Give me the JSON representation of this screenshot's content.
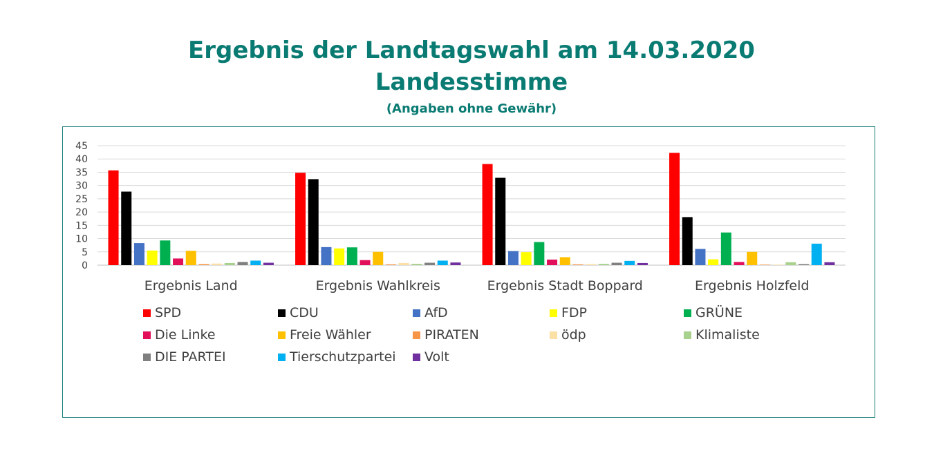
{
  "title": {
    "line1": "Ergebnis der Landtagswahl am 14.03.2020",
    "line2": "Landesstimme",
    "line3": "(Angaben ohne Gewähr)"
  },
  "chart_data": {
    "type": "bar",
    "ylim": [
      0,
      45
    ],
    "yticks": [
      "0",
      "5",
      "10",
      "15",
      "20",
      "25",
      "30",
      "35",
      "40",
      "45"
    ],
    "grid": true,
    "legend_position": "bottom",
    "categories": [
      "Ergebnis Land",
      "Ergebnis Wahlkreis",
      "Ergebnis Stadt Boppard",
      "Ergebnis Holzfeld"
    ],
    "series": [
      {
        "name": "SPD",
        "color": "#ff0000",
        "values": [
          35.7,
          34.8,
          38.1,
          42.3
        ]
      },
      {
        "name": "CDU",
        "color": "#000000",
        "values": [
          27.7,
          32.4,
          32.9,
          18.1
        ]
      },
      {
        "name": "AfD",
        "color": "#4472c4",
        "values": [
          8.3,
          6.8,
          5.3,
          6.1
        ]
      },
      {
        "name": "FDP",
        "color": "#ffff00",
        "values": [
          5.5,
          6.3,
          4.9,
          2.2
        ]
      },
      {
        "name": "GRÜNE",
        "color": "#00b050",
        "values": [
          9.3,
          6.7,
          8.7,
          12.3
        ]
      },
      {
        "name": "Die Linke",
        "color": "#e2105a",
        "values": [
          2.5,
          1.9,
          2.1,
          1.2
        ]
      },
      {
        "name": "Freie Wähler",
        "color": "#ffc000",
        "values": [
          5.4,
          5.0,
          3.0,
          5.0
        ]
      },
      {
        "name": "PIRATEN",
        "color": "#f79646",
        "values": [
          0.4,
          0.3,
          0.3,
          0.2
        ]
      },
      {
        "name": "ödp",
        "color": "#fbe0a5",
        "values": [
          0.6,
          0.8,
          0.4,
          0.2
        ]
      },
      {
        "name": "Klimaliste",
        "color": "#a9d18e",
        "values": [
          0.8,
          0.5,
          0.5,
          1.1
        ]
      },
      {
        "name": "DIE PARTEI",
        "color": "#808080",
        "values": [
          1.2,
          0.9,
          0.9,
          0.4
        ]
      },
      {
        "name": "Tierschutzpartei",
        "color": "#00b0f0",
        "values": [
          1.7,
          1.7,
          1.6,
          8.1
        ]
      },
      {
        "name": "Volt",
        "color": "#7030a0",
        "values": [
          0.9,
          1.0,
          0.8,
          1.1
        ]
      }
    ]
  }
}
